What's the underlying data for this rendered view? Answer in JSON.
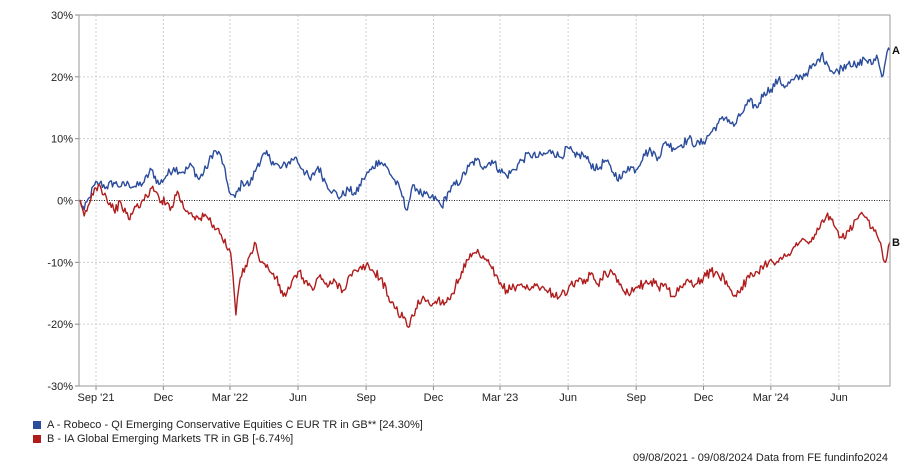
{
  "chart_data": {
    "type": "line",
    "y_ticks": [
      {
        "value": 30,
        "label": "30%"
      },
      {
        "value": 20,
        "label": "20%"
      },
      {
        "value": 10,
        "label": "10%"
      },
      {
        "value": 0,
        "label": "0%"
      },
      {
        "value": -10,
        "label": "-10%"
      },
      {
        "value": -20,
        "label": "-20%"
      },
      {
        "value": -30,
        "label": "-30%"
      }
    ],
    "ylim": [
      -30,
      30
    ],
    "xlim": [
      "2021-08-09",
      "2024-08-09"
    ],
    "x_ticks": [
      {
        "date": "2021-09-01",
        "label": "Sep '21"
      },
      {
        "date": "2021-12-01",
        "label": "Dec"
      },
      {
        "date": "2022-03-01",
        "label": "Mar '22"
      },
      {
        "date": "2022-06-01",
        "label": "Jun"
      },
      {
        "date": "2022-09-01",
        "label": "Sep"
      },
      {
        "date": "2022-12-01",
        "label": "Dec"
      },
      {
        "date": "2023-03-01",
        "label": "Mar '23"
      },
      {
        "date": "2023-06-01",
        "label": "Jun"
      },
      {
        "date": "2023-09-01",
        "label": "Sep"
      },
      {
        "date": "2023-12-01",
        "label": "Dec"
      },
      {
        "date": "2024-03-01",
        "label": "Mar '24"
      },
      {
        "date": "2024-06-01",
        "label": "Jun"
      }
    ],
    "grid": true,
    "zero_line": "dotted",
    "legend_placement": "bottom-left",
    "series": [
      {
        "name": "A - Robeco - QI Emerging Conservative Equities C EUR TR in GB** [24.30%]",
        "end_label": "A",
        "color": "#2b4c9b",
        "points": [
          [
            "2021-08-09",
            0
          ],
          [
            "2021-08-16",
            -1.5
          ],
          [
            "2021-08-23",
            0.5
          ],
          [
            "2021-08-30",
            2.5
          ],
          [
            "2021-09-06",
            2.8
          ],
          [
            "2021-09-15",
            2.2
          ],
          [
            "2021-09-25",
            2.9
          ],
          [
            "2021-10-05",
            2.3
          ],
          [
            "2021-10-15",
            2.7
          ],
          [
            "2021-10-25",
            2.2
          ],
          [
            "2021-11-05",
            3.0
          ],
          [
            "2021-11-15",
            5.0
          ],
          [
            "2021-11-25",
            2.6
          ],
          [
            "2021-12-05",
            4.0
          ],
          [
            "2021-12-15",
            5.3
          ],
          [
            "2021-12-28",
            4.6
          ],
          [
            "2022-01-08",
            5.7
          ],
          [
            "2022-01-18",
            3.4
          ],
          [
            "2022-01-28",
            5.2
          ],
          [
            "2022-02-07",
            8.0
          ],
          [
            "2022-02-17",
            7.2
          ],
          [
            "2022-02-24",
            3.5
          ],
          [
            "2022-03-02",
            1.0
          ],
          [
            "2022-03-08",
            0.5
          ],
          [
            "2022-03-18",
            3.0
          ],
          [
            "2022-03-28",
            2.6
          ],
          [
            "2022-04-08",
            6.0
          ],
          [
            "2022-04-18",
            7.5
          ],
          [
            "2022-04-28",
            6.3
          ],
          [
            "2022-05-08",
            5.2
          ],
          [
            "2022-05-18",
            6.0
          ],
          [
            "2022-05-28",
            7.0
          ],
          [
            "2022-06-08",
            5.0
          ],
          [
            "2022-06-18",
            3.3
          ],
          [
            "2022-06-28",
            5.5
          ],
          [
            "2022-07-08",
            3.0
          ],
          [
            "2022-07-18",
            1.5
          ],
          [
            "2022-07-28",
            0.5
          ],
          [
            "2022-08-08",
            1.8
          ],
          [
            "2022-08-18",
            1.0
          ],
          [
            "2022-08-28",
            3.5
          ],
          [
            "2022-09-08",
            5.0
          ],
          [
            "2022-09-18",
            6.5
          ],
          [
            "2022-09-28",
            5.5
          ],
          [
            "2022-10-08",
            3.5
          ],
          [
            "2022-10-18",
            1.5
          ],
          [
            "2022-10-25",
            -1.5
          ],
          [
            "2022-11-05",
            2.5
          ],
          [
            "2022-11-15",
            1.0
          ],
          [
            "2022-11-25",
            0.5
          ],
          [
            "2022-12-05",
            0.2
          ],
          [
            "2022-12-12",
            -1.0
          ],
          [
            "2022-12-22",
            1.5
          ],
          [
            "2023-01-08",
            3.5
          ],
          [
            "2023-01-18",
            5.5
          ],
          [
            "2023-01-28",
            6.5
          ],
          [
            "2023-02-08",
            5.5
          ],
          [
            "2023-02-18",
            6.5
          ],
          [
            "2023-02-28",
            5.0
          ],
          [
            "2023-03-10",
            4.0
          ],
          [
            "2023-03-20",
            5.0
          ],
          [
            "2023-03-30",
            6.5
          ],
          [
            "2023-04-10",
            7.5
          ],
          [
            "2023-04-20",
            7.0
          ],
          [
            "2023-05-01",
            7.5
          ],
          [
            "2023-05-11",
            8.0
          ],
          [
            "2023-05-21",
            7.0
          ],
          [
            "2023-06-01",
            8.5
          ],
          [
            "2023-06-11",
            7.0
          ],
          [
            "2023-06-21",
            7.5
          ],
          [
            "2023-07-01",
            6.0
          ],
          [
            "2023-07-11",
            5.0
          ],
          [
            "2023-07-21",
            6.5
          ],
          [
            "2023-08-01",
            4.5
          ],
          [
            "2023-08-11",
            3.5
          ],
          [
            "2023-08-21",
            5.5
          ],
          [
            "2023-09-01",
            5.0
          ],
          [
            "2023-09-11",
            7.5
          ],
          [
            "2023-09-21",
            8.0
          ],
          [
            "2023-10-01",
            7.0
          ],
          [
            "2023-10-11",
            9.5
          ],
          [
            "2023-10-21",
            8.5
          ],
          [
            "2023-11-01",
            9.0
          ],
          [
            "2023-11-11",
            10.0
          ],
          [
            "2023-11-21",
            9.0
          ],
          [
            "2023-12-01",
            9.5
          ],
          [
            "2023-12-11",
            11.0
          ],
          [
            "2023-12-21",
            12.5
          ],
          [
            "2024-01-01",
            13.5
          ],
          [
            "2024-01-11",
            12.0
          ],
          [
            "2024-01-21",
            14.0
          ],
          [
            "2024-02-01",
            16.0
          ],
          [
            "2024-02-11",
            15.0
          ],
          [
            "2024-02-21",
            17.5
          ],
          [
            "2024-03-01",
            18.0
          ],
          [
            "2024-03-11",
            19.5
          ],
          [
            "2024-03-21",
            18.5
          ],
          [
            "2024-04-01",
            19.5
          ],
          [
            "2024-04-11",
            20.0
          ],
          [
            "2024-04-21",
            21.0
          ],
          [
            "2024-05-01",
            22.0
          ],
          [
            "2024-05-08",
            23.5
          ],
          [
            "2024-05-15",
            22.5
          ],
          [
            "2024-05-25",
            20.5
          ],
          [
            "2024-06-05",
            21.5
          ],
          [
            "2024-06-15",
            22.5
          ],
          [
            "2024-06-25",
            21.5
          ],
          [
            "2024-07-05",
            23.0
          ],
          [
            "2024-07-15",
            22.0
          ],
          [
            "2024-07-22",
            23.5
          ],
          [
            "2024-07-29",
            20.0
          ],
          [
            "2024-08-05",
            24.0
          ],
          [
            "2024-08-09",
            24.3
          ]
        ]
      },
      {
        "name": "B - IA Global Emerging Markets TR in GB [-6.74%]",
        "end_label": "B",
        "color": "#b01c1c",
        "points": [
          [
            "2021-08-09",
            0
          ],
          [
            "2021-08-16",
            -2.5
          ],
          [
            "2021-08-23",
            -0.5
          ],
          [
            "2021-08-30",
            2.0
          ],
          [
            "2021-09-06",
            2.5
          ],
          [
            "2021-09-15",
            0.5
          ],
          [
            "2021-09-25",
            -1.5
          ],
          [
            "2021-10-05",
            -0.5
          ],
          [
            "2021-10-15",
            -3.0
          ],
          [
            "2021-10-25",
            -1.0
          ],
          [
            "2021-11-05",
            0.0
          ],
          [
            "2021-11-15",
            2.0
          ],
          [
            "2021-11-25",
            0.5
          ],
          [
            "2021-12-05",
            -0.5
          ],
          [
            "2021-12-12",
            -1.0
          ],
          [
            "2021-12-20",
            1.5
          ],
          [
            "2021-12-30",
            -1.5
          ],
          [
            "2022-01-08",
            -2.0
          ],
          [
            "2022-01-18",
            -3.0
          ],
          [
            "2022-01-28",
            -2.5
          ],
          [
            "2022-02-07",
            -4.0
          ],
          [
            "2022-02-17",
            -5.5
          ],
          [
            "2022-02-24",
            -7.5
          ],
          [
            "2022-03-02",
            -8.5
          ],
          [
            "2022-03-05",
            -12.0
          ],
          [
            "2022-03-09",
            -18.5
          ],
          [
            "2022-03-15",
            -12.5
          ],
          [
            "2022-03-22",
            -10.5
          ],
          [
            "2022-03-29",
            -8.5
          ],
          [
            "2022-04-05",
            -7.0
          ],
          [
            "2022-04-12",
            -10.0
          ],
          [
            "2022-04-22",
            -11.0
          ],
          [
            "2022-05-02",
            -12.5
          ],
          [
            "2022-05-12",
            -15.5
          ],
          [
            "2022-05-22",
            -14.0
          ],
          [
            "2022-06-01",
            -11.5
          ],
          [
            "2022-06-11",
            -13.0
          ],
          [
            "2022-06-21",
            -14.5
          ],
          [
            "2022-07-01",
            -12.0
          ],
          [
            "2022-07-11",
            -14.0
          ],
          [
            "2022-07-21",
            -13.0
          ],
          [
            "2022-08-01",
            -14.5
          ],
          [
            "2022-08-11",
            -12.0
          ],
          [
            "2022-08-21",
            -11.5
          ],
          [
            "2022-09-01",
            -10.5
          ],
          [
            "2022-09-11",
            -11.5
          ],
          [
            "2022-09-21",
            -12.5
          ],
          [
            "2022-10-01",
            -15.5
          ],
          [
            "2022-10-11",
            -17.5
          ],
          [
            "2022-10-21",
            -19.0
          ],
          [
            "2022-10-28",
            -20.5
          ],
          [
            "2022-11-07",
            -17.5
          ],
          [
            "2022-11-17",
            -15.5
          ],
          [
            "2022-11-27",
            -17.0
          ],
          [
            "2022-12-07",
            -16.0
          ],
          [
            "2022-12-17",
            -16.5
          ],
          [
            "2022-12-27",
            -15.0
          ],
          [
            "2023-01-08",
            -11.5
          ],
          [
            "2023-01-18",
            -9.5
          ],
          [
            "2023-01-28",
            -8.5
          ],
          [
            "2023-02-08",
            -9.5
          ],
          [
            "2023-02-18",
            -11.0
          ],
          [
            "2023-02-28",
            -13.5
          ],
          [
            "2023-03-10",
            -14.5
          ],
          [
            "2023-03-20",
            -14.0
          ],
          [
            "2023-03-30",
            -13.5
          ],
          [
            "2023-04-10",
            -14.5
          ],
          [
            "2023-04-20",
            -13.5
          ],
          [
            "2023-05-01",
            -14.5
          ],
          [
            "2023-05-11",
            -15.0
          ],
          [
            "2023-05-21",
            -15.5
          ],
          [
            "2023-06-01",
            -14.5
          ],
          [
            "2023-06-11",
            -13.0
          ],
          [
            "2023-06-21",
            -13.5
          ],
          [
            "2023-07-01",
            -12.0
          ],
          [
            "2023-07-11",
            -13.5
          ],
          [
            "2023-07-21",
            -11.5
          ],
          [
            "2023-08-01",
            -12.0
          ],
          [
            "2023-08-11",
            -13.5
          ],
          [
            "2023-08-21",
            -15.0
          ],
          [
            "2023-09-01",
            -14.0
          ],
          [
            "2023-09-11",
            -13.5
          ],
          [
            "2023-09-21",
            -13.0
          ],
          [
            "2023-10-01",
            -14.0
          ],
          [
            "2023-10-11",
            -13.5
          ],
          [
            "2023-10-21",
            -15.5
          ],
          [
            "2023-11-01",
            -14.0
          ],
          [
            "2023-11-11",
            -13.0
          ],
          [
            "2023-11-21",
            -13.5
          ],
          [
            "2023-12-01",
            -12.5
          ],
          [
            "2023-12-11",
            -11.5
          ],
          [
            "2023-12-21",
            -12.0
          ],
          [
            "2024-01-01",
            -13.0
          ],
          [
            "2024-01-11",
            -15.5
          ],
          [
            "2024-01-21",
            -14.0
          ],
          [
            "2024-02-01",
            -12.5
          ],
          [
            "2024-02-11",
            -11.5
          ],
          [
            "2024-02-21",
            -10.5
          ],
          [
            "2024-03-01",
            -9.5
          ],
          [
            "2024-03-11",
            -10.0
          ],
          [
            "2024-03-21",
            -9.0
          ],
          [
            "2024-04-01",
            -7.5
          ],
          [
            "2024-04-11",
            -6.5
          ],
          [
            "2024-04-21",
            -7.0
          ],
          [
            "2024-05-01",
            -5.5
          ],
          [
            "2024-05-08",
            -3.5
          ],
          [
            "2024-05-15",
            -2.5
          ],
          [
            "2024-05-25",
            -4.0
          ],
          [
            "2024-06-05",
            -6.0
          ],
          [
            "2024-06-15",
            -5.0
          ],
          [
            "2024-06-25",
            -3.0
          ],
          [
            "2024-07-05",
            -2.5
          ],
          [
            "2024-07-15",
            -4.5
          ],
          [
            "2024-07-22",
            -5.5
          ],
          [
            "2024-07-29",
            -8.0
          ],
          [
            "2024-08-03",
            -10.0
          ],
          [
            "2024-08-09",
            -6.74
          ]
        ]
      }
    ]
  },
  "footer": {
    "period": "09/08/2021 - 09/08/2024",
    "source": "Data from FE fundinfo2024"
  }
}
